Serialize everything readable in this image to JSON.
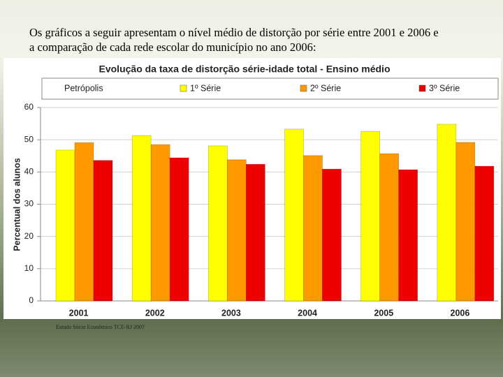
{
  "heading": [
    "Os gráficos a seguir apresentam o nível médio de distorção por série entre 2001 e 2006 e",
    "a comparação de cada rede escolar do município no ano 2006:"
  ],
  "chart_data": {
    "type": "bar",
    "title": "Evolução da taxa de distorção série-idade total - Ensino médio",
    "legend_title": "Petrópolis",
    "y_label": "Percentual dos alunos",
    "categories": [
      "2001",
      "2002",
      "2003",
      "2004",
      "2005",
      "2006"
    ],
    "series": [
      {
        "name": "1º Série",
        "color": "#ffff00",
        "values": [
          46.8,
          51.3,
          48.1,
          53.3,
          52.6,
          54.8
        ]
      },
      {
        "name": "2º Série",
        "color": "#ff9900",
        "values": [
          49.1,
          48.5,
          43.8,
          45.1,
          45.7,
          49.2
        ]
      },
      {
        "name": "3º Série",
        "color": "#ee0000",
        "values": [
          43.6,
          44.4,
          42.4,
          40.9,
          40.7,
          41.8
        ]
      }
    ],
    "ylim": [
      0,
      60
    ],
    "yticks": [
      0,
      10,
      20,
      30,
      40,
      50,
      60
    ],
    "grid": true
  },
  "source": "Estudo Sócio Econômico TCE-RJ 2007"
}
